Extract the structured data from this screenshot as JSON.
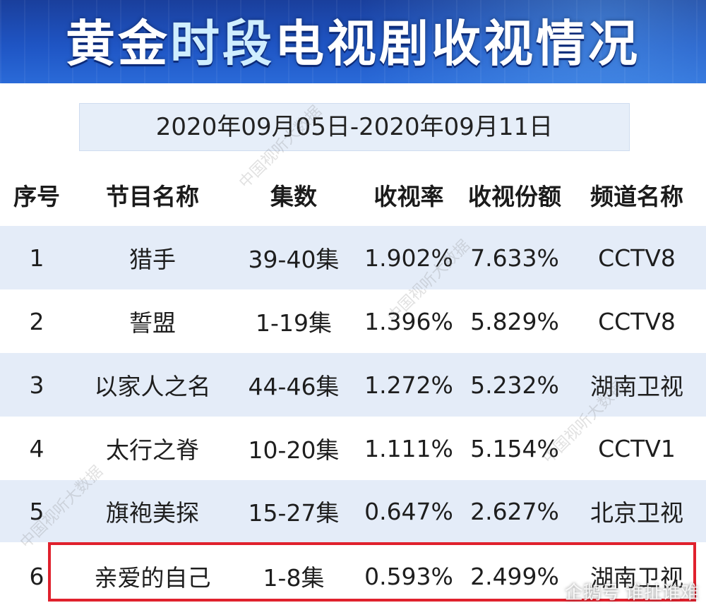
{
  "title": {
    "part1": "黄金",
    "part2": "时段",
    "part3": "电视剧收视情况"
  },
  "date_range": "2020年09月05日-2020年09月11日",
  "table": {
    "headers": [
      "序号",
      "节目名称",
      "集数",
      "收视率",
      "收视份额",
      "频道名称"
    ],
    "rows": [
      [
        "1",
        "猎手",
        "39-40集",
        "1.902%",
        "7.633%",
        "CCTV8"
      ],
      [
        "2",
        "誓盟",
        "1-19集",
        "1.396%",
        "5.829%",
        "CCTV8"
      ],
      [
        "3",
        "以家人之名",
        "44-46集",
        "1.272%",
        "5.232%",
        "湖南卫视"
      ],
      [
        "4",
        "太行之脊",
        "10-20集",
        "1.111%",
        "5.154%",
        "CCTV1"
      ],
      [
        "5",
        "旗袍美探",
        "15-27集",
        "0.647%",
        "2.627%",
        "北京卫视"
      ],
      [
        "6",
        "亲爱的自己",
        "1-8集",
        "0.593%",
        "2.499%",
        "湖南卫视"
      ]
    ]
  },
  "watermark_text": "中国视听大数据",
  "corner_watermark": "企鹅号 谁扯谁难"
}
